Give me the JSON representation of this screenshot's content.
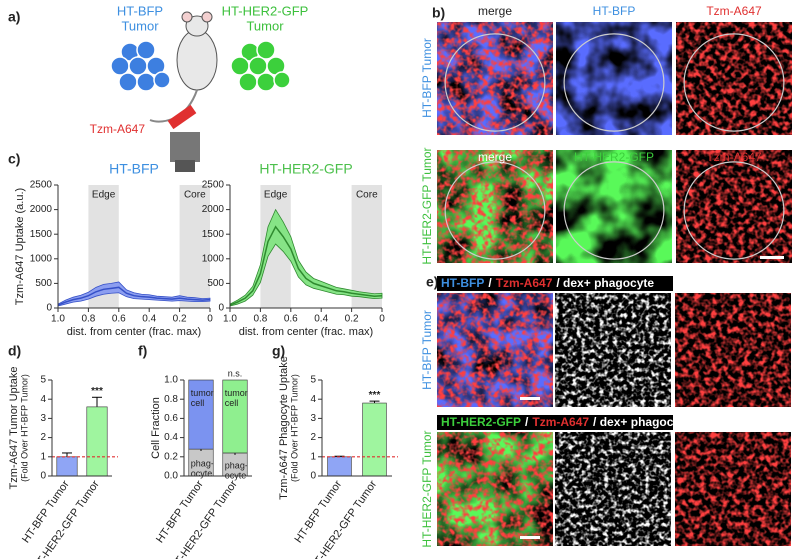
{
  "panel_a": {
    "label": "a)",
    "bfp_title": "HT-BFP",
    "bfp_sub": "Tumor",
    "her2_title": "HT-HER2-GFP",
    "her2_sub": "Tumor",
    "antibody": "Tzm-A647"
  },
  "panel_b": {
    "label": "b)",
    "rows": [
      {
        "label": "HT-BFP Tumor",
        "images": [
          "merge",
          "HT-BFP",
          "Tzm-A647"
        ]
      },
      {
        "label": "HT-HER2-GFP Tumor",
        "images": [
          "merge",
          "HT-HER2-GFP",
          "Tzm-A647"
        ]
      }
    ]
  },
  "panel_e": {
    "label": "e)",
    "rows": [
      {
        "label": "HT-BFP Tumor",
        "header": [
          "HT-BFP",
          "/",
          "Tzm-A647",
          "/ dex+ phagocyte"
        ]
      },
      {
        "label": "HT-HER2-GFP Tumor",
        "header": [
          "HT-HER2-GFP",
          "/",
          "Tzm-A647",
          "/ dex+ phagocyte"
        ]
      }
    ]
  },
  "chart_data": [
    {
      "type": "line",
      "panel_label": "c)",
      "title": "HT-BFP",
      "title_color": "#3d8fe0",
      "ylabel": "Tzm-A647 Uptake (a.u.)",
      "xlabel": "dist. from center (frac. max)",
      "x": [
        1.0,
        0.95,
        0.9,
        0.85,
        0.8,
        0.75,
        0.7,
        0.65,
        0.6,
        0.55,
        0.5,
        0.45,
        0.4,
        0.35,
        0.3,
        0.25,
        0.2,
        0.15,
        0.1,
        0.05,
        0.0
      ],
      "series": [
        {
          "name": "HT-BFP",
          "color": "#3550c8",
          "band_color": "#8c9ef0",
          "values": [
            60,
            120,
            170,
            200,
            250,
            330,
            380,
            400,
            420,
            300,
            250,
            230,
            220,
            200,
            190,
            180,
            200,
            180,
            170,
            160,
            170
          ],
          "errors": [
            20,
            40,
            50,
            60,
            70,
            90,
            100,
            100,
            110,
            70,
            60,
            50,
            50,
            40,
            40,
            40,
            50,
            40,
            40,
            30,
            30
          ]
        }
      ],
      "regions": [
        {
          "label": "Edge",
          "range": [
            0.8,
            0.6
          ]
        },
        {
          "label": "Core",
          "range": [
            0.2,
            0.0
          ]
        }
      ],
      "xlim": [
        1.0,
        0.0
      ],
      "xticks": [
        {
          "value": 1.0,
          "label": "1.0"
        },
        {
          "value": 0.8,
          "label": "0.8"
        },
        {
          "value": 0.6,
          "label": "0.6"
        },
        {
          "value": 0.4,
          "label": "0.4"
        },
        {
          "value": 0.2,
          "label": "0.2"
        },
        0
      ],
      "ylim": [
        0,
        2500
      ],
      "yticks": [
        0,
        500,
        1000,
        1500,
        2000,
        2500
      ]
    },
    {
      "type": "line",
      "title": "HT-HER2-GFP",
      "title_color": "#4cc04c",
      "xlabel": "dist. from center (frac. max)",
      "x": [
        1.0,
        0.95,
        0.9,
        0.85,
        0.8,
        0.75,
        0.7,
        0.65,
        0.6,
        0.55,
        0.5,
        0.45,
        0.4,
        0.35,
        0.3,
        0.25,
        0.2,
        0.15,
        0.1,
        0.05,
        0.0
      ],
      "series": [
        {
          "name": "HT-HER2-GFP",
          "color": "#2f8a2f",
          "band_color": "#86e486",
          "values": [
            60,
            120,
            200,
            350,
            700,
            1350,
            1650,
            1450,
            1200,
            800,
            600,
            500,
            450,
            400,
            350,
            330,
            300,
            280,
            260,
            240,
            250
          ],
          "errors": [
            20,
            40,
            60,
            90,
            180,
            300,
            350,
            300,
            250,
            170,
            130,
            100,
            90,
            80,
            70,
            60,
            60,
            50,
            50,
            50,
            50
          ]
        }
      ],
      "regions": [
        {
          "label": "Edge",
          "range": [
            0.8,
            0.6
          ]
        },
        {
          "label": "Core",
          "range": [
            0.2,
            0.0
          ]
        }
      ],
      "xlim": [
        1.0,
        0.0
      ],
      "xticks": [
        {
          "value": 1.0,
          "label": "1.0"
        },
        {
          "value": 0.8,
          "label": "0.8"
        },
        {
          "value": 0.6,
          "label": "0.6"
        },
        {
          "value": 0.4,
          "label": "0.4"
        },
        {
          "value": 0.2,
          "label": "0.2"
        },
        0
      ],
      "ylim": [
        0,
        2500
      ],
      "yticks": [
        0,
        500,
        1000,
        1500,
        2000,
        2500
      ]
    },
    {
      "type": "bar",
      "panel_label": "d)",
      "ylabel": [
        "Tzm-A647 Tumor Uptake",
        "(Fold Over HT-BFP Tumor)"
      ],
      "categories": [
        "HT-BFP Tumor",
        "HT-HER2-GFP Tumor"
      ],
      "values": [
        1,
        3.6
      ],
      "errors": [
        0.2,
        0.5
      ],
      "colors": [
        "#8fa5f5",
        "#9ff59f"
      ],
      "reference_line": 1,
      "annotation": "***",
      "ylim": [
        0,
        5
      ],
      "yticks": [
        0,
        1,
        2,
        3,
        4,
        5
      ]
    },
    {
      "type": "stacked_bar",
      "panel_label": "f)",
      "ylabel": [
        "Cell Fraction"
      ],
      "categories": [
        "HT-BFP Tumor",
        "HT-HER2-GFP Tumor"
      ],
      "series": [
        {
          "name": "phag- ocyte",
          "colors": [
            "#c8c8c8",
            "#c8c8c8"
          ],
          "values": [
            0.28,
            0.24
          ],
          "errors": [
            0.02,
            0.02
          ]
        },
        {
          "name": "tumor cell",
          "colors": [
            "#7b93f0",
            "#8fef8f"
          ],
          "values": [
            0.72,
            0.76
          ]
        }
      ],
      "annotation": "n.s.",
      "ylim": [
        0,
        1
      ],
      "yticks": [
        {
          "value": 0,
          "label": "0.0"
        },
        0.2,
        0.4,
        0.6,
        0.8,
        {
          "value": 1,
          "label": "1.0"
        }
      ]
    },
    {
      "type": "bar",
      "panel_label": "g)",
      "ylabel": [
        "Tzm-A647 Phagocyte Uptake",
        "(Fold Over HT-BFP Tumor)"
      ],
      "categories": [
        "HT-BFP Tumor",
        "HT-HER2-GFP Tumor"
      ],
      "values": [
        1,
        3.8
      ],
      "errors": [
        0.03,
        0.1
      ],
      "colors": [
        "#8fa5f5",
        "#9ff59f"
      ],
      "reference_line": 1,
      "annotation": "***",
      "ylim": [
        0,
        5
      ],
      "yticks": [
        0,
        1,
        2,
        3,
        4,
        5
      ]
    }
  ]
}
